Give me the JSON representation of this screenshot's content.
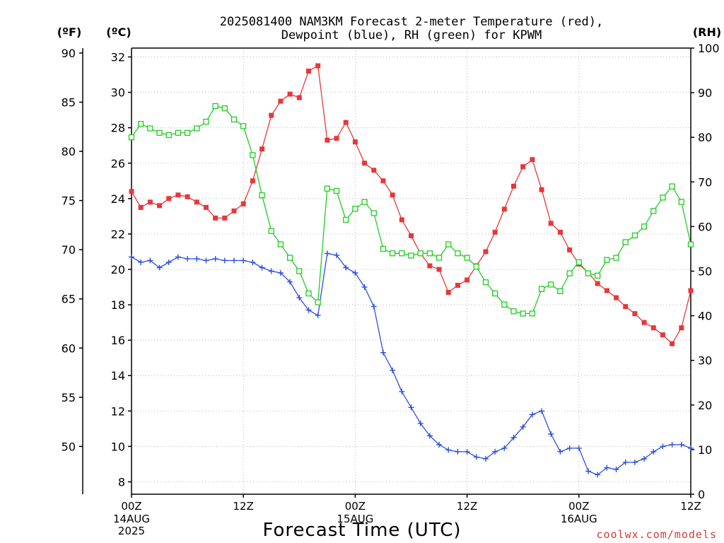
{
  "chart_data": {
    "type": "line",
    "title_line1": "2025081400 NAM3KM Forecast 2-meter Temperature (red),",
    "title_line2": "Dewpoint (blue), RH (green) for KPWM",
    "xlabel": "Forecast Time (UTC)",
    "credit": "coolwx.com/models",
    "units": {
      "fahrenheit": "(ºF)",
      "celsius": "(ºC)",
      "rh": "(RH)"
    },
    "x_hours_range": [
      0,
      60
    ],
    "x_ticks": [
      {
        "hour": 0,
        "label": "00Z",
        "date": "14AUG",
        "year": "2025"
      },
      {
        "hour": 12,
        "label": "12Z",
        "date": "",
        "year": ""
      },
      {
        "hour": 24,
        "label": "00Z",
        "date": "15AUG",
        "year": ""
      },
      {
        "hour": 36,
        "label": "12Z",
        "date": "",
        "year": ""
      },
      {
        "hour": 48,
        "label": "00Z",
        "date": "16AUG",
        "year": ""
      },
      {
        "hour": 60,
        "label": "12Z",
        "date": "",
        "year": ""
      }
    ],
    "celsius_range": [
      7.3,
      32.5
    ],
    "celsius_ticks": [
      8,
      10,
      12,
      14,
      16,
      18,
      20,
      22,
      24,
      26,
      28,
      30,
      32
    ],
    "fahrenheit_ticks": [
      50,
      55,
      60,
      65,
      70,
      75,
      80,
      85,
      90
    ],
    "rh_range": [
      0,
      100
    ],
    "rh_ticks": [
      0,
      10,
      20,
      30,
      40,
      50,
      60,
      70,
      80,
      90,
      100
    ],
    "colors": {
      "temperature": "#e8373a",
      "dewpoint": "#2f4fdd",
      "rh": "#22cc22"
    },
    "series": [
      {
        "name": "Temperature",
        "axis": "celsius",
        "marker": "filled-square",
        "x": [
          0,
          1,
          2,
          3,
          4,
          5,
          6,
          7,
          8,
          9,
          10,
          11,
          12,
          13,
          14,
          15,
          16,
          17,
          18,
          19,
          20,
          21,
          22,
          23,
          24,
          25,
          26,
          27,
          28,
          29,
          30,
          31,
          32,
          33,
          34,
          35,
          36,
          37,
          38,
          39,
          40,
          41,
          42,
          43,
          44,
          45,
          46,
          47,
          48,
          49,
          50,
          51,
          52,
          53,
          54,
          55,
          56,
          57,
          58,
          59,
          60
        ],
        "values": [
          24.4,
          23.5,
          23.8,
          23.6,
          24.0,
          24.2,
          24.1,
          23.8,
          23.5,
          22.9,
          22.9,
          23.3,
          23.7,
          25.0,
          26.8,
          28.7,
          29.5,
          29.9,
          29.7,
          31.2,
          31.5,
          27.3,
          27.4,
          28.3,
          27.2,
          26.0,
          25.6,
          25.0,
          24.2,
          22.8,
          21.9,
          20.9,
          20.2,
          20.0,
          18.7,
          19.1,
          19.4,
          20.2,
          21.0,
          22.1,
          23.4,
          24.7,
          25.8,
          26.2,
          24.5,
          22.6,
          22.1,
          21.1,
          20.3,
          19.8,
          19.2,
          18.8,
          18.4,
          17.9,
          17.5,
          17.0,
          16.7,
          16.3,
          15.8,
          16.7,
          18.8
        ]
      },
      {
        "name": "Dewpoint",
        "axis": "celsius",
        "marker": "plus",
        "x": [
          0,
          1,
          2,
          3,
          4,
          5,
          6,
          7,
          8,
          9,
          10,
          11,
          12,
          13,
          14,
          15,
          16,
          17,
          18,
          19,
          20,
          21,
          22,
          23,
          24,
          25,
          26,
          27,
          28,
          29,
          30,
          31,
          32,
          33,
          34,
          35,
          36,
          37,
          38,
          39,
          40,
          41,
          42,
          43,
          44,
          45,
          46,
          47,
          48,
          49,
          50,
          51,
          52,
          53,
          54,
          55,
          56,
          57,
          58,
          59,
          60
        ],
        "values": [
          20.7,
          20.4,
          20.5,
          20.1,
          20.4,
          20.7,
          20.6,
          20.6,
          20.5,
          20.6,
          20.5,
          20.5,
          20.5,
          20.4,
          20.1,
          19.9,
          19.8,
          19.3,
          18.4,
          17.7,
          17.4,
          20.9,
          20.8,
          20.1,
          19.8,
          19.0,
          17.9,
          15.3,
          14.3,
          13.1,
          12.2,
          11.3,
          10.6,
          10.1,
          9.8,
          9.7,
          9.7,
          9.4,
          9.3,
          9.7,
          9.9,
          10.5,
          11.1,
          11.8,
          12.0,
          10.7,
          9.7,
          9.9,
          9.9,
          8.6,
          8.4,
          8.8,
          8.7,
          9.1,
          9.1,
          9.3,
          9.7,
          10.0,
          10.1,
          10.1,
          9.9
        ]
      },
      {
        "name": "RH",
        "axis": "rh",
        "marker": "open-square",
        "x": [
          0,
          1,
          2,
          3,
          4,
          5,
          6,
          7,
          8,
          9,
          10,
          11,
          12,
          13,
          14,
          15,
          16,
          17,
          18,
          19,
          20,
          21,
          22,
          23,
          24,
          25,
          26,
          27,
          28,
          29,
          30,
          31,
          32,
          33,
          34,
          35,
          36,
          37,
          38,
          39,
          40,
          41,
          42,
          43,
          44,
          45,
          46,
          47,
          48,
          49,
          50,
          51,
          52,
          53,
          54,
          55,
          56,
          57,
          58,
          59,
          60
        ],
        "values": [
          80,
          83,
          82,
          81,
          80.5,
          81,
          81,
          82,
          83.5,
          87,
          86.5,
          84,
          82.5,
          76,
          67,
          59,
          56,
          53,
          50,
          45,
          43,
          68.5,
          68,
          61.5,
          64,
          65.5,
          63,
          55,
          54,
          54,
          53.5,
          54,
          54,
          53,
          56,
          54,
          53,
          51,
          47.5,
          45,
          42.5,
          41,
          40.5,
          40.5,
          46,
          47,
          45.5,
          49.5,
          52,
          49.5,
          49,
          52.5,
          53,
          56.5,
          58,
          60,
          63.5,
          66.5,
          69,
          65.5,
          56
        ]
      }
    ]
  }
}
